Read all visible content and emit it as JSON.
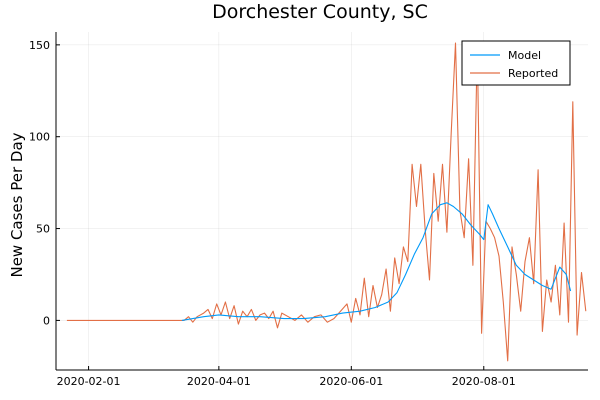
{
  "chart_data": {
    "type": "line",
    "title": "Dorchester County, SC",
    "xlabel": "",
    "ylabel": "New Cases Per Day",
    "x_type": "date",
    "xlim": [
      "2020-01-17",
      "2020-09-18"
    ],
    "ylim": [
      -27,
      157
    ],
    "x_ticks": [
      "2020-02-01",
      "2020-04-01",
      "2020-06-01",
      "2020-08-01"
    ],
    "y_ticks": [
      0,
      50,
      100,
      150
    ],
    "grid": true,
    "legend_position": "top-right",
    "series": [
      {
        "name": "Model",
        "color": "#009af9",
        "points": [
          [
            "2020-03-15",
            0
          ],
          [
            "2020-03-20",
            1
          ],
          [
            "2020-03-25",
            2
          ],
          [
            "2020-04-01",
            3
          ],
          [
            "2020-04-10",
            2
          ],
          [
            "2020-04-20",
            2
          ],
          [
            "2020-05-01",
            1
          ],
          [
            "2020-05-10",
            1
          ],
          [
            "2020-05-20",
            2
          ],
          [
            "2020-05-28",
            4
          ],
          [
            "2020-06-05",
            5
          ],
          [
            "2020-06-12",
            7
          ],
          [
            "2020-06-18",
            10
          ],
          [
            "2020-06-22",
            15
          ],
          [
            "2020-06-26",
            25
          ],
          [
            "2020-06-30",
            36
          ],
          [
            "2020-07-04",
            45
          ],
          [
            "2020-07-08",
            58
          ],
          [
            "2020-07-12",
            63
          ],
          [
            "2020-07-15",
            64
          ],
          [
            "2020-07-18",
            62
          ],
          [
            "2020-07-22",
            58
          ],
          [
            "2020-07-26",
            52
          ],
          [
            "2020-07-30",
            47
          ],
          [
            "2020-08-01",
            44
          ],
          [
            "2020-08-03",
            63
          ],
          [
            "2020-08-05",
            58
          ],
          [
            "2020-08-08",
            50
          ],
          [
            "2020-08-12",
            40
          ],
          [
            "2020-08-16",
            30
          ],
          [
            "2020-08-20",
            25
          ],
          [
            "2020-08-24",
            22
          ],
          [
            "2020-08-28",
            19
          ],
          [
            "2020-09-01",
            17
          ],
          [
            "2020-09-05",
            29
          ],
          [
            "2020-09-08",
            25
          ],
          [
            "2020-09-10",
            16
          ]
        ]
      },
      {
        "name": "Reported",
        "color": "#e26f46",
        "points": [
          [
            "2020-01-22",
            0
          ],
          [
            "2020-03-01",
            0
          ],
          [
            "2020-03-12",
            0
          ],
          [
            "2020-03-16",
            0
          ],
          [
            "2020-03-18",
            2
          ],
          [
            "2020-03-20",
            -1
          ],
          [
            "2020-03-22",
            2
          ],
          [
            "2020-03-25",
            4
          ],
          [
            "2020-03-27",
            6
          ],
          [
            "2020-03-29",
            1
          ],
          [
            "2020-03-31",
            9
          ],
          [
            "2020-04-02",
            3
          ],
          [
            "2020-04-04",
            10
          ],
          [
            "2020-04-06",
            1
          ],
          [
            "2020-04-08",
            8
          ],
          [
            "2020-04-10",
            -2
          ],
          [
            "2020-04-12",
            5
          ],
          [
            "2020-04-14",
            2
          ],
          [
            "2020-04-16",
            6
          ],
          [
            "2020-04-18",
            0
          ],
          [
            "2020-04-20",
            3
          ],
          [
            "2020-04-22",
            4
          ],
          [
            "2020-04-24",
            1
          ],
          [
            "2020-04-26",
            5
          ],
          [
            "2020-04-28",
            -4
          ],
          [
            "2020-04-30",
            4
          ],
          [
            "2020-05-03",
            2
          ],
          [
            "2020-05-06",
            0
          ],
          [
            "2020-05-09",
            3
          ],
          [
            "2020-05-12",
            -1
          ],
          [
            "2020-05-15",
            2
          ],
          [
            "2020-05-18",
            3
          ],
          [
            "2020-05-21",
            -1
          ],
          [
            "2020-05-24",
            1
          ],
          [
            "2020-05-27",
            5
          ],
          [
            "2020-05-30",
            9
          ],
          [
            "2020-06-01",
            -1
          ],
          [
            "2020-06-03",
            12
          ],
          [
            "2020-06-05",
            3
          ],
          [
            "2020-06-07",
            23
          ],
          [
            "2020-06-09",
            2
          ],
          [
            "2020-06-11",
            19
          ],
          [
            "2020-06-13",
            7
          ],
          [
            "2020-06-15",
            14
          ],
          [
            "2020-06-17",
            28
          ],
          [
            "2020-06-19",
            5
          ],
          [
            "2020-06-21",
            34
          ],
          [
            "2020-06-23",
            20
          ],
          [
            "2020-06-25",
            40
          ],
          [
            "2020-06-27",
            32
          ],
          [
            "2020-06-29",
            85
          ],
          [
            "2020-07-01",
            62
          ],
          [
            "2020-07-03",
            85
          ],
          [
            "2020-07-05",
            50
          ],
          [
            "2020-07-07",
            22
          ],
          [
            "2020-07-09",
            80
          ],
          [
            "2020-07-11",
            54
          ],
          [
            "2020-07-13",
            85
          ],
          [
            "2020-07-15",
            48
          ],
          [
            "2020-07-17",
            102
          ],
          [
            "2020-07-19",
            151
          ],
          [
            "2020-07-21",
            60
          ],
          [
            "2020-07-23",
            45
          ],
          [
            "2020-07-25",
            88
          ],
          [
            "2020-07-27",
            30
          ],
          [
            "2020-07-29",
            150
          ],
          [
            "2020-07-31",
            -7
          ],
          [
            "2020-08-02",
            54
          ],
          [
            "2020-08-04",
            50
          ],
          [
            "2020-08-06",
            45
          ],
          [
            "2020-08-08",
            35
          ],
          [
            "2020-08-10",
            10
          ],
          [
            "2020-08-12",
            -22
          ],
          [
            "2020-08-14",
            40
          ],
          [
            "2020-08-16",
            25
          ],
          [
            "2020-08-18",
            5
          ],
          [
            "2020-08-20",
            32
          ],
          [
            "2020-08-22",
            45
          ],
          [
            "2020-08-24",
            20
          ],
          [
            "2020-08-26",
            82
          ],
          [
            "2020-08-28",
            -6
          ],
          [
            "2020-08-30",
            22
          ],
          [
            "2020-09-01",
            10
          ],
          [
            "2020-09-03",
            30
          ],
          [
            "2020-09-05",
            3
          ],
          [
            "2020-09-07",
            53
          ],
          [
            "2020-09-09",
            -1
          ],
          [
            "2020-09-11",
            119
          ],
          [
            "2020-09-13",
            -8
          ],
          [
            "2020-09-15",
            26
          ],
          [
            "2020-09-17",
            5
          ]
        ]
      }
    ]
  }
}
